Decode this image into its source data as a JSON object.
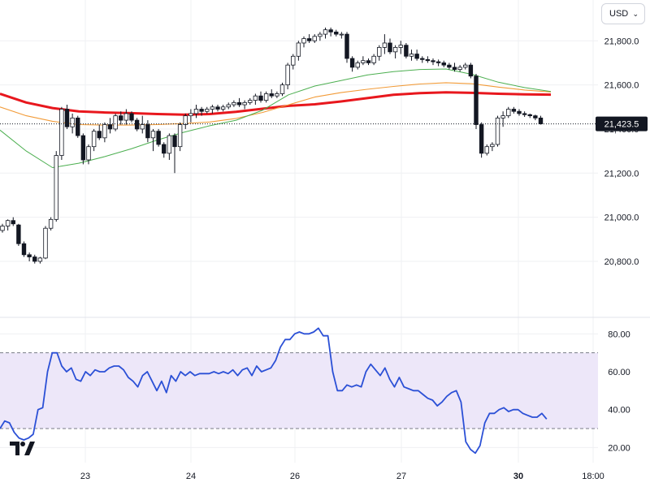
{
  "toolbar": {
    "currency": "USD"
  },
  "colors": {
    "candle_up": "#ffffff",
    "candle_down": "#131722",
    "ma_red": "#e8171d",
    "ma_orange": "#f29b38",
    "ma_green": "#4caf50",
    "rsi_line": "#2b50d6",
    "rsi_band": "#ede7f9",
    "grid": "#eff0f3"
  },
  "logo": {
    "icon": "tradingview-logo",
    "text": "TV"
  },
  "chart_data": [
    {
      "type": "candlestick",
      "title": "",
      "price_axis": {
        "ticks": [
          20800,
          21000,
          21200,
          21400,
          21600,
          21800
        ],
        "range": [
          20557,
          21985
        ]
      },
      "tick_labels": [
        "20,800.0",
        "21,000.0",
        "21,200.0",
        "21,400.0",
        "21,600.0",
        "21,800.0"
      ],
      "x_ticks": [
        "23",
        "24",
        "26",
        "27",
        "30",
        "18:00"
      ],
      "last_price": 21423.5,
      "last_price_label": "21,423.5",
      "candles": [
        [
          20940,
          20970,
          20930,
          20960
        ],
        [
          20960,
          20990,
          20940,
          20985
        ],
        [
          20985,
          21000,
          20960,
          20970
        ],
        [
          20965,
          20970,
          20870,
          20880
        ],
        [
          20880,
          20890,
          20820,
          20830
        ],
        [
          20830,
          20840,
          20800,
          20820
        ],
        [
          20820,
          20830,
          20790,
          20800
        ],
        [
          20800,
          20820,
          20790,
          20815
        ],
        [
          20815,
          20960,
          20810,
          20950
        ],
        [
          20950,
          21000,
          20940,
          20990
        ],
        [
          20990,
          21300,
          20980,
          21280
        ],
        [
          21280,
          21500,
          21260,
          21490
        ],
        [
          21490,
          21510,
          21400,
          21410
        ],
        [
          21410,
          21470,
          21380,
          21450
        ],
        [
          21450,
          21460,
          21360,
          21370
        ],
        [
          21370,
          21380,
          21240,
          21260
        ],
        [
          21260,
          21330,
          21240,
          21320
        ],
        [
          21320,
          21400,
          21300,
          21390
        ],
        [
          21390,
          21420,
          21350,
          21360
        ],
        [
          21360,
          21430,
          21340,
          21420
        ],
        [
          21420,
          21450,
          21380,
          21400
        ],
        [
          21400,
          21470,
          21390,
          21460
        ],
        [
          21460,
          21480,
          21420,
          21440
        ],
        [
          21440,
          21490,
          21420,
          21470
        ],
        [
          21470,
          21480,
          21430,
          21440
        ],
        [
          21440,
          21450,
          21390,
          21400
        ],
        [
          21400,
          21460,
          21380,
          21420
        ],
        [
          21420,
          21440,
          21340,
          21360
        ],
        [
          21360,
          21400,
          21300,
          21390
        ],
        [
          21390,
          21400,
          21320,
          21330
        ],
        [
          21330,
          21340,
          21270,
          21290
        ],
        [
          21290,
          21380,
          21260,
          21370
        ],
        [
          21370,
          21380,
          21200,
          21320
        ],
        [
          21320,
          21430,
          21300,
          21420
        ],
        [
          21420,
          21470,
          21400,
          21460
        ],
        [
          21460,
          21490,
          21430,
          21470
        ],
        [
          21470,
          21510,
          21450,
          21490
        ],
        [
          21490,
          21500,
          21460,
          21480
        ],
        [
          21480,
          21500,
          21470,
          21490
        ],
        [
          21490,
          21510,
          21470,
          21500
        ],
        [
          21500,
          21510,
          21480,
          21490
        ],
        [
          21490,
          21510,
          21480,
          21500
        ],
        [
          21500,
          21520,
          21490,
          21510
        ],
        [
          21510,
          21530,
          21500,
          21520
        ],
        [
          21520,
          21540,
          21500,
          21510
        ],
        [
          21510,
          21530,
          21490,
          21520
        ],
        [
          21520,
          21540,
          21510,
          21530
        ],
        [
          21530,
          21560,
          21510,
          21550
        ],
        [
          21550,
          21570,
          21520,
          21530
        ],
        [
          21530,
          21570,
          21520,
          21560
        ],
        [
          21560,
          21580,
          21540,
          21550
        ],
        [
          21550,
          21570,
          21540,
          21560
        ],
        [
          21560,
          21610,
          21550,
          21600
        ],
        [
          21600,
          21700,
          21580,
          21690
        ],
        [
          21690,
          21740,
          21670,
          21730
        ],
        [
          21730,
          21800,
          21710,
          21790
        ],
        [
          21790,
          21820,
          21770,
          21810
        ],
        [
          21810,
          21830,
          21790,
          21800
        ],
        [
          21800,
          21830,
          21790,
          21820
        ],
        [
          21820,
          21840,
          21800,
          21830
        ],
        [
          21830,
          21860,
          21810,
          21850
        ],
        [
          21850,
          21860,
          21820,
          21840
        ],
        [
          21840,
          21850,
          21820,
          21830
        ],
        [
          21830,
          21840,
          21810,
          21830
        ],
        [
          21830,
          21840,
          21700,
          21720
        ],
        [
          21720,
          21730,
          21660,
          21680
        ],
        [
          21680,
          21710,
          21670,
          21700
        ],
        [
          21700,
          21730,
          21690,
          21710
        ],
        [
          21710,
          21720,
          21690,
          21700
        ],
        [
          21700,
          21740,
          21690,
          21730
        ],
        [
          21730,
          21780,
          21710,
          21770
        ],
        [
          21770,
          21830,
          21740,
          21790
        ],
        [
          21790,
          21810,
          21740,
          21750
        ],
        [
          21750,
          21780,
          21720,
          21770
        ],
        [
          21770,
          21800,
          21740,
          21780
        ],
        [
          21780,
          21790,
          21720,
          21730
        ],
        [
          21730,
          21760,
          21710,
          21740
        ],
        [
          21740,
          21760,
          21710,
          21720
        ],
        [
          21720,
          21730,
          21700,
          21715
        ],
        [
          21715,
          21730,
          21700,
          21710
        ],
        [
          21710,
          21720,
          21690,
          21705
        ],
        [
          21705,
          21715,
          21685,
          21700
        ],
        [
          21700,
          21710,
          21680,
          21690
        ],
        [
          21690,
          21700,
          21670,
          21680
        ],
        [
          21680,
          21700,
          21660,
          21670
        ],
        [
          21670,
          21690,
          21660,
          21680
        ],
        [
          21680,
          21700,
          21670,
          21690
        ],
        [
          21690,
          21700,
          21630,
          21640
        ],
        [
          21640,
          21650,
          21400,
          21420
        ],
        [
          21420,
          21430,
          21270,
          21290
        ],
        [
          21290,
          21330,
          21280,
          21320
        ],
        [
          21320,
          21340,
          21300,
          21330
        ],
        [
          21330,
          21460,
          21320,
          21450
        ],
        [
          21450,
          21480,
          21410,
          21460
        ],
        [
          21460,
          21500,
          21450,
          21490
        ],
        [
          21490,
          21500,
          21470,
          21480
        ],
        [
          21480,
          21490,
          21460,
          21470
        ],
        [
          21470,
          21480,
          21455,
          21465
        ],
        [
          21465,
          21470,
          21450,
          21460
        ],
        [
          21460,
          21465,
          21440,
          21450
        ],
        [
          21450,
          21460,
          21420,
          21423.5
        ]
      ],
      "moving_averages": [
        {
          "color": "#e8171d",
          "values": [
            21560,
            21520,
            21495,
            21480,
            21475,
            21472,
            21468,
            21465,
            21468,
            21478,
            21492,
            21505,
            21512,
            21525,
            21540,
            21555,
            21563,
            21566,
            21564,
            21560,
            21557,
            21556
          ]
        },
        {
          "color": "#f29b38",
          "values": [
            21500,
            21460,
            21435,
            21420,
            21418,
            21418,
            21420,
            21425,
            21432,
            21448,
            21475,
            21510,
            21545,
            21565,
            21580,
            21593,
            21604,
            21610,
            21605,
            21590,
            21577,
            21568
          ]
        },
        {
          "color": "#4caf50",
          "values": [
            21395,
            21300,
            21225,
            21245,
            21275,
            21310,
            21350,
            21385,
            21415,
            21440,
            21485,
            21555,
            21595,
            21620,
            21645,
            21660,
            21670,
            21672,
            21648,
            21612,
            21588,
            21570
          ]
        }
      ]
    },
    {
      "type": "line",
      "title": "",
      "y_ticks": [
        20,
        40,
        60,
        80
      ],
      "tick_labels": [
        "20.00",
        "40.00",
        "60.00",
        "80.00"
      ],
      "ylim": [
        12,
        87
      ],
      "band": [
        30,
        70
      ],
      "values": [
        30,
        34,
        33,
        28,
        25,
        24,
        25,
        27,
        40,
        41,
        60,
        70,
        70,
        63,
        60,
        62,
        56,
        55,
        60,
        58,
        61,
        60,
        60,
        62,
        63,
        63,
        61,
        57,
        55,
        52,
        58,
        60,
        55,
        50,
        55,
        49,
        58,
        55,
        60,
        58,
        60,
        58,
        59,
        59,
        59,
        60,
        59,
        60,
        59,
        61,
        58,
        61,
        62,
        58,
        63,
        60,
        61,
        62,
        66,
        73,
        77,
        77,
        80,
        81,
        80,
        80,
        81,
        83,
        79,
        79,
        60,
        50,
        50,
        53,
        52,
        53,
        52,
        60,
        64,
        61,
        58,
        62,
        56,
        52,
        57,
        52,
        51,
        50,
        50,
        48,
        46,
        45,
        42,
        44,
        47,
        49,
        50,
        44,
        23,
        19,
        17,
        21,
        33,
        38,
        38,
        40,
        41,
        39,
        40,
        40,
        38,
        37,
        36,
        36,
        38,
        35
      ]
    }
  ]
}
